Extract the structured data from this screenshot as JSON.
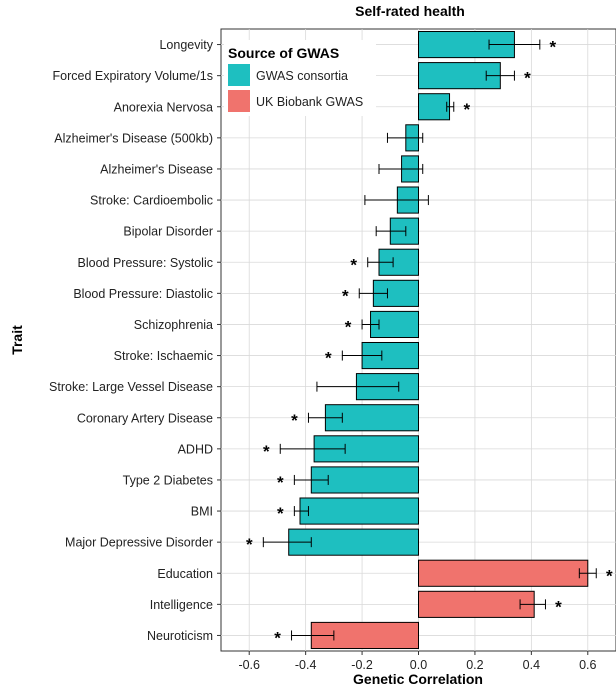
{
  "chart_data": {
    "type": "bar",
    "orientation": "horizontal",
    "title": "Self-rated health",
    "xlabel": "Genetic Correlation",
    "ylabel": "Trait",
    "xlim": [
      -0.7,
      0.7
    ],
    "xticks": [
      -0.6,
      -0.4,
      -0.2,
      0.0,
      0.2,
      0.4,
      0.6
    ],
    "xtick_labels": [
      "-0.6",
      "-0.4",
      "-0.2",
      "0.0",
      "0.2",
      "0.4",
      "0.6"
    ],
    "grid": true,
    "legend": {
      "title": "Source of GWAS",
      "placement": "top-left",
      "entries": [
        {
          "name": "GWAS consortia",
          "color": "#1ebfc0"
        },
        {
          "name": "UK Biobank GWAS",
          "color": "#f0736d"
        }
      ]
    },
    "significance_marker": "*",
    "categories": [
      "Longevity",
      "Forced Expiratory Volume/1s",
      "Anorexia Nervosa",
      "Alzheimer's Disease (500kb)",
      "Alzheimer's Disease",
      "Stroke: Cardioembolic",
      "Bipolar Disorder",
      "Blood Pressure: Systolic",
      "Blood Pressure: Diastolic",
      "Schizophrenia",
      "Stroke: Ischaemic",
      "Stroke: Large Vessel Disease",
      "Coronary Artery Disease",
      "ADHD",
      "Type 2 Diabetes",
      "BMI",
      "Major Depressive Disorder",
      "Education",
      "Intelligence",
      "Neuroticism"
    ],
    "bars": [
      {
        "trait": "Longevity",
        "value": 0.34,
        "err_low": 0.25,
        "err_high": 0.43,
        "source": "GWAS consortia",
        "significant": true
      },
      {
        "trait": "Forced Expiratory Volume/1s",
        "value": 0.29,
        "err_low": 0.24,
        "err_high": 0.34,
        "source": "GWAS consortia",
        "significant": true
      },
      {
        "trait": "Anorexia Nervosa",
        "value": 0.11,
        "err_low": 0.1,
        "err_high": 0.125,
        "source": "GWAS consortia",
        "significant": true
      },
      {
        "trait": "Alzheimer's Disease (500kb)",
        "value": -0.045,
        "err_low": -0.11,
        "err_high": 0.015,
        "source": "GWAS consortia",
        "significant": false
      },
      {
        "trait": "Alzheimer's Disease",
        "value": -0.06,
        "err_low": -0.14,
        "err_high": 0.015,
        "source": "GWAS consortia",
        "significant": false
      },
      {
        "trait": "Stroke: Cardioembolic",
        "value": -0.075,
        "err_low": -0.19,
        "err_high": 0.035,
        "source": "GWAS consortia",
        "significant": false
      },
      {
        "trait": "Bipolar Disorder",
        "value": -0.1,
        "err_low": -0.15,
        "err_high": -0.045,
        "source": "GWAS consortia",
        "significant": false
      },
      {
        "trait": "Blood Pressure: Systolic",
        "value": -0.14,
        "err_low": -0.18,
        "err_high": -0.09,
        "source": "GWAS consortia",
        "significant": true
      },
      {
        "trait": "Blood Pressure: Diastolic",
        "value": -0.16,
        "err_low": -0.21,
        "err_high": -0.11,
        "source": "GWAS consortia",
        "significant": true
      },
      {
        "trait": "Schizophrenia",
        "value": -0.17,
        "err_low": -0.2,
        "err_high": -0.14,
        "source": "GWAS consortia",
        "significant": true
      },
      {
        "trait": "Stroke: Ischaemic",
        "value": -0.2,
        "err_low": -0.27,
        "err_high": -0.13,
        "source": "GWAS consortia",
        "significant": true
      },
      {
        "trait": "Stroke: Large Vessel Disease",
        "value": -0.22,
        "err_low": -0.36,
        "err_high": -0.07,
        "source": "GWAS consortia",
        "significant": false
      },
      {
        "trait": "Coronary Artery Disease",
        "value": -0.33,
        "err_low": -0.39,
        "err_high": -0.27,
        "source": "GWAS consortia",
        "significant": true
      },
      {
        "trait": "ADHD",
        "value": -0.37,
        "err_low": -0.49,
        "err_high": -0.26,
        "source": "GWAS consortia",
        "significant": true
      },
      {
        "trait": "Type 2 Diabetes",
        "value": -0.38,
        "err_low": -0.44,
        "err_high": -0.32,
        "source": "GWAS consortia",
        "significant": true
      },
      {
        "trait": "BMI",
        "value": -0.42,
        "err_low": -0.44,
        "err_high": -0.39,
        "source": "GWAS consortia",
        "significant": true
      },
      {
        "trait": "Major Depressive Disorder",
        "value": -0.46,
        "err_low": -0.55,
        "err_high": -0.38,
        "source": "GWAS consortia",
        "significant": true
      },
      {
        "trait": "Education",
        "value": 0.6,
        "err_low": 0.57,
        "err_high": 0.63,
        "source": "UK Biobank GWAS",
        "significant": true
      },
      {
        "trait": "Intelligence",
        "value": 0.41,
        "err_low": 0.36,
        "err_high": 0.45,
        "source": "UK Biobank GWAS",
        "significant": true
      },
      {
        "trait": "Neuroticism",
        "value": -0.38,
        "err_low": -0.45,
        "err_high": -0.3,
        "source": "UK Biobank GWAS",
        "significant": true
      }
    ]
  }
}
